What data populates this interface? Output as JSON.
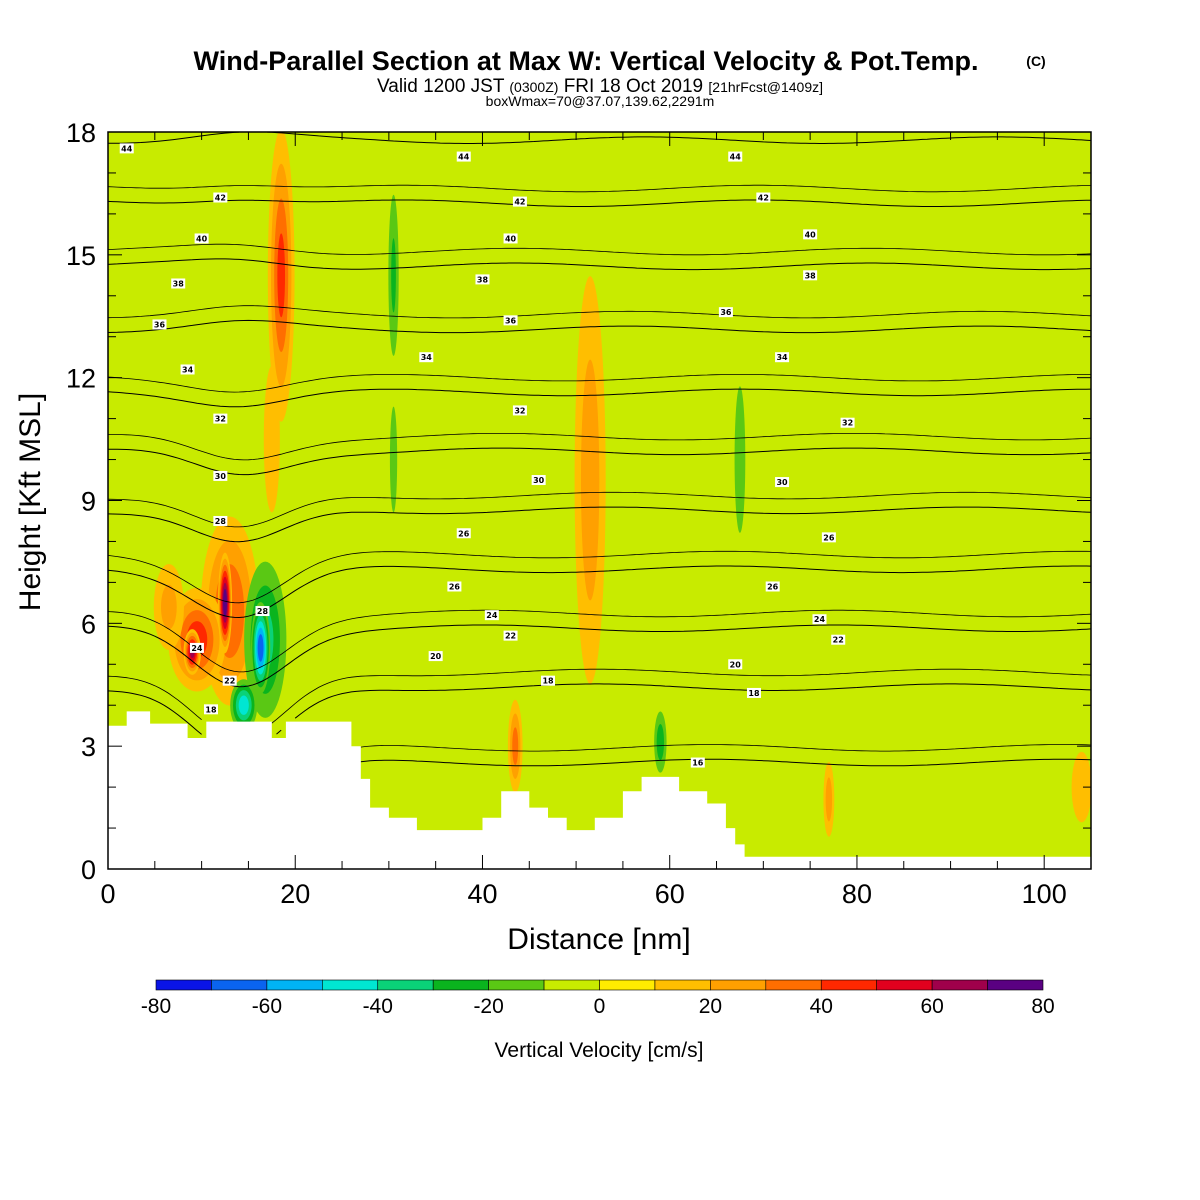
{
  "title": {
    "main": "Wind-Parallel Section at Max W: Vertical Velocity & Pot.Temp.",
    "copyright": "(C)",
    "valid_prefix": "Valid 1200 JST",
    "utc": "(0300Z)",
    "valid_date": "FRI 18 Oct 2019",
    "forecast": "[21hrFcst@1409z]",
    "box_info": "boxWmax=70@37.07,139.62,2291m"
  },
  "chart_data": {
    "type": "heatmap",
    "xlabel": "Distance [nm]",
    "ylabel": "Height [Kft MSL]",
    "xlim": [
      0,
      105
    ],
    "ylim": [
      0,
      18
    ],
    "x_ticks": [
      0,
      20,
      40,
      60,
      80,
      100
    ],
    "y_ticks": [
      0,
      3,
      6,
      9,
      12,
      15,
      18
    ],
    "colorbar": {
      "label": "Vertical Velocity [cm/s]",
      "levels": [
        -80,
        -70,
        -60,
        -50,
        -40,
        -30,
        -20,
        -10,
        0,
        10,
        20,
        30,
        40,
        50,
        60,
        70,
        80
      ],
      "tick_labels": [
        "-80",
        "-60",
        "-40",
        "-20",
        "0",
        "20",
        "40",
        "60",
        "80"
      ],
      "tick_values": [
        -80,
        -60,
        -40,
        -20,
        0,
        20,
        40,
        60,
        80
      ],
      "colors": [
        "#0a14e6",
        "#0a64f0",
        "#00b4f5",
        "#00e6d2",
        "#0ad278",
        "#0ab41e",
        "#5ac814",
        "#c8eb00",
        "#ffeb00",
        "#ffbe00",
        "#ffa000",
        "#ff6e00",
        "#ff2800",
        "#e1001e",
        "#a0004b",
        "#5a0082"
      ]
    },
    "background_value_color": "#c8eb00",
    "terrain": [
      [
        0,
        3.5
      ],
      [
        2,
        3.5
      ],
      [
        2,
        3.85
      ],
      [
        4.5,
        3.85
      ],
      [
        4.5,
        3.55
      ],
      [
        8.5,
        3.55
      ],
      [
        8.5,
        3.2
      ],
      [
        10.5,
        3.2
      ],
      [
        10.5,
        3.6
      ],
      [
        17.5,
        3.6
      ],
      [
        17.5,
        3.2
      ],
      [
        19,
        3.2
      ],
      [
        19,
        3.6
      ],
      [
        26,
        3.6
      ],
      [
        26,
        3.0
      ],
      [
        27,
        3.0
      ],
      [
        27,
        2.2
      ],
      [
        28,
        2.2
      ],
      [
        28,
        1.5
      ],
      [
        30,
        1.5
      ],
      [
        30,
        1.25
      ],
      [
        33,
        1.25
      ],
      [
        33,
        0.95
      ],
      [
        40,
        0.95
      ],
      [
        40,
        1.25
      ],
      [
        42,
        1.25
      ],
      [
        42,
        1.9
      ],
      [
        45,
        1.9
      ],
      [
        45,
        1.5
      ],
      [
        47,
        1.5
      ],
      [
        47,
        1.25
      ],
      [
        49,
        1.25
      ],
      [
        49,
        0.95
      ],
      [
        52,
        0.95
      ],
      [
        52,
        1.25
      ],
      [
        55,
        1.25
      ],
      [
        55,
        1.9
      ],
      [
        57,
        1.9
      ],
      [
        57,
        2.25
      ],
      [
        61,
        2.25
      ],
      [
        61,
        1.9
      ],
      [
        64,
        1.9
      ],
      [
        64,
        1.6
      ],
      [
        66,
        1.6
      ],
      [
        66,
        1.0
      ],
      [
        67,
        1.0
      ],
      [
        67,
        0.6
      ],
      [
        68,
        0.6
      ],
      [
        68,
        0.3
      ],
      [
        105,
        0.3
      ]
    ],
    "w_features": [
      {
        "x": 13,
        "y": 6.3,
        "rx": 3.5,
        "ry": 2.6,
        "w": 38
      },
      {
        "x": 9.5,
        "y": 5.6,
        "rx": 3.4,
        "ry": 1.4,
        "w": 44
      },
      {
        "x": 9,
        "y": 5.3,
        "rx": 1.0,
        "ry": 0.6,
        "w": 62
      },
      {
        "x": 12.5,
        "y": 6.5,
        "rx": 0.8,
        "ry": 1.3,
        "w": 75
      },
      {
        "x": 6.5,
        "y": 6.4,
        "rx": 2.0,
        "ry": 1.3,
        "w": 22
      },
      {
        "x": 16.8,
        "y": 5.6,
        "rx": 2.6,
        "ry": 2.2,
        "w": -32
      },
      {
        "x": 16.3,
        "y": 5.4,
        "rx": 1.1,
        "ry": 1.2,
        "w": -65
      },
      {
        "x": 14.5,
        "y": 4.0,
        "rx": 1.6,
        "ry": 0.7,
        "w": -45
      },
      {
        "x": 18.5,
        "y": 14.5,
        "rx": 1.6,
        "ry": 4.0,
        "w": 40
      },
      {
        "x": 17.5,
        "y": 10.5,
        "rx": 1.2,
        "ry": 2.5,
        "w": 15
      },
      {
        "x": 30.5,
        "y": 14.5,
        "rx": 0.7,
        "ry": 2.5,
        "w": -20
      },
      {
        "x": 30.5,
        "y": 10.0,
        "rx": 0.6,
        "ry": 2.0,
        "w": -12
      },
      {
        "x": 51.5,
        "y": 9.5,
        "rx": 2.0,
        "ry": 6.0,
        "w": 25
      },
      {
        "x": 43.5,
        "y": 3.0,
        "rx": 0.9,
        "ry": 1.3,
        "w": 33
      },
      {
        "x": 59,
        "y": 3.1,
        "rx": 0.8,
        "ry": 0.9,
        "w": -25
      },
      {
        "x": 67.5,
        "y": 10.0,
        "rx": 0.8,
        "ry": 2.5,
        "w": -15
      },
      {
        "x": 77,
        "y": 1.7,
        "rx": 0.7,
        "ry": 1.1,
        "w": 25
      },
      {
        "x": 104,
        "y": 2.0,
        "rx": 1.5,
        "ry": 1.2,
        "w": 15
      }
    ],
    "theta_contours": [
      16,
      18,
      20,
      22,
      24,
      26,
      28,
      30,
      32,
      34,
      36,
      38,
      40,
      42,
      44
    ],
    "theta_labels": [
      {
        "text": "44",
        "x": 2,
        "y": 17.6
      },
      {
        "text": "44",
        "x": 38,
        "y": 17.4
      },
      {
        "text": "44",
        "x": 67,
        "y": 17.4
      },
      {
        "text": "42",
        "x": 12,
        "y": 16.4
      },
      {
        "text": "42",
        "x": 44,
        "y": 16.3
      },
      {
        "text": "42",
        "x": 70,
        "y": 16.4
      },
      {
        "text": "40",
        "x": 10,
        "y": 15.4
      },
      {
        "text": "40",
        "x": 43,
        "y": 15.4
      },
      {
        "text": "40",
        "x": 75,
        "y": 15.5
      },
      {
        "text": "38",
        "x": 7.5,
        "y": 14.3
      },
      {
        "text": "38",
        "x": 40,
        "y": 14.4
      },
      {
        "text": "38",
        "x": 75,
        "y": 14.5
      },
      {
        "text": "36",
        "x": 5.5,
        "y": 13.3
      },
      {
        "text": "36",
        "x": 43,
        "y": 13.4
      },
      {
        "text": "36",
        "x": 66,
        "y": 13.6
      },
      {
        "text": "34",
        "x": 8.5,
        "y": 12.2
      },
      {
        "text": "34",
        "x": 34,
        "y": 12.5
      },
      {
        "text": "34",
        "x": 72,
        "y": 12.5
      },
      {
        "text": "32",
        "x": 12,
        "y": 11.0
      },
      {
        "text": "32",
        "x": 44,
        "y": 11.2
      },
      {
        "text": "32",
        "x": 79,
        "y": 10.9
      },
      {
        "text": "30",
        "x": 12,
        "y": 9.6
      },
      {
        "text": "30",
        "x": 46,
        "y": 9.5
      },
      {
        "text": "30",
        "x": 72,
        "y": 9.45
      },
      {
        "text": "28",
        "x": 12,
        "y": 8.5
      },
      {
        "text": "26",
        "x": 38,
        "y": 8.2
      },
      {
        "text": "26",
        "x": 77,
        "y": 8.1
      },
      {
        "text": "26",
        "x": 37,
        "y": 6.9
      },
      {
        "text": "26",
        "x": 71,
        "y": 6.9
      },
      {
        "text": "24",
        "x": 41,
        "y": 6.2
      },
      {
        "text": "24",
        "x": 76,
        "y": 6.1
      },
      {
        "text": "22",
        "x": 43,
        "y": 5.7
      },
      {
        "text": "22",
        "x": 78,
        "y": 5.6
      },
      {
        "text": "20",
        "x": 35,
        "y": 5.2
      },
      {
        "text": "20",
        "x": 67,
        "y": 5.0
      },
      {
        "text": "18",
        "x": 47,
        "y": 4.6
      },
      {
        "text": "18",
        "x": 69,
        "y": 4.3
      },
      {
        "text": "24",
        "x": 9.5,
        "y": 5.4
      },
      {
        "text": "28",
        "x": 16.5,
        "y": 6.3
      },
      {
        "text": "22",
        "x": 13,
        "y": 4.6
      },
      {
        "text": "18",
        "x": 11,
        "y": 3.9
      },
      {
        "text": "16",
        "x": 63,
        "y": 2.6
      }
    ]
  }
}
